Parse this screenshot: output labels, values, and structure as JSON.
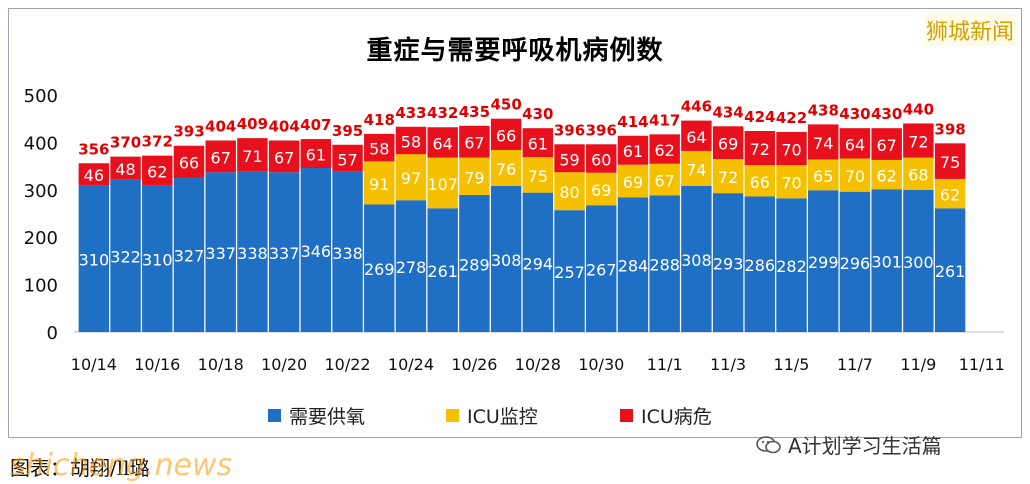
{
  "watermark_top": "狮城新闻",
  "chart_data": {
    "type": "bar",
    "stacked": true,
    "title": "重症与需要呼吸机病例数",
    "ylim": [
      0,
      500
    ],
    "yticks": [
      0,
      100,
      200,
      300,
      400,
      500
    ],
    "x_tick_labels": [
      "10/14",
      "10/16",
      "10/18",
      "10/20",
      "10/22",
      "10/24",
      "10/26",
      "10/28",
      "10/30",
      "11/1",
      "11/3",
      "11/5",
      "11/7",
      "11/9",
      "11/11"
    ],
    "categories": [
      "10/14",
      "10/15",
      "10/16",
      "10/17",
      "10/18",
      "10/19",
      "10/20",
      "10/21",
      "10/22",
      "10/23",
      "10/24",
      "10/25",
      "10/26",
      "10/27",
      "10/28",
      "10/29",
      "10/30",
      "10/31",
      "11/1",
      "11/2",
      "11/3",
      "11/4",
      "11/5",
      "11/6",
      "11/7",
      "11/8",
      "11/9",
      "11/10"
    ],
    "series": [
      {
        "name": "需要供氧",
        "color": "#1f6fc5",
        "values": [
          310,
          322,
          310,
          327,
          337,
          338,
          337,
          346,
          338,
          269,
          278,
          261,
          289,
          308,
          294,
          257,
          267,
          284,
          288,
          308,
          293,
          286,
          282,
          299,
          296,
          301,
          300,
          261
        ]
      },
      {
        "name": "ICU监控",
        "color": "#f5c000",
        "values": [
          0,
          0,
          0,
          0,
          0,
          0,
          0,
          0,
          0,
          91,
          97,
          107,
          79,
          76,
          75,
          80,
          69,
          69,
          67,
          74,
          72,
          66,
          70,
          65,
          70,
          62,
          68,
          62
        ]
      },
      {
        "name": "ICU病危",
        "color": "#e8101c",
        "values": [
          46,
          48,
          62,
          66,
          67,
          71,
          67,
          61,
          57,
          58,
          58,
          64,
          67,
          66,
          61,
          59,
          60,
          61,
          62,
          64,
          69,
          72,
          70,
          74,
          64,
          67,
          72,
          75
        ]
      }
    ],
    "totals": [
      356,
      370,
      372,
      393,
      404,
      409,
      404,
      407,
      395,
      418,
      433,
      432,
      435,
      450,
      430,
      396,
      396,
      414,
      417,
      446,
      434,
      424,
      422,
      438,
      430,
      430,
      440,
      398
    ],
    "legend_position": "bottom"
  },
  "bottom_caption": "图表：胡翔/ll璐",
  "bottom_overlay": "shicheng.news",
  "source_label": "A计划学习生活篇"
}
